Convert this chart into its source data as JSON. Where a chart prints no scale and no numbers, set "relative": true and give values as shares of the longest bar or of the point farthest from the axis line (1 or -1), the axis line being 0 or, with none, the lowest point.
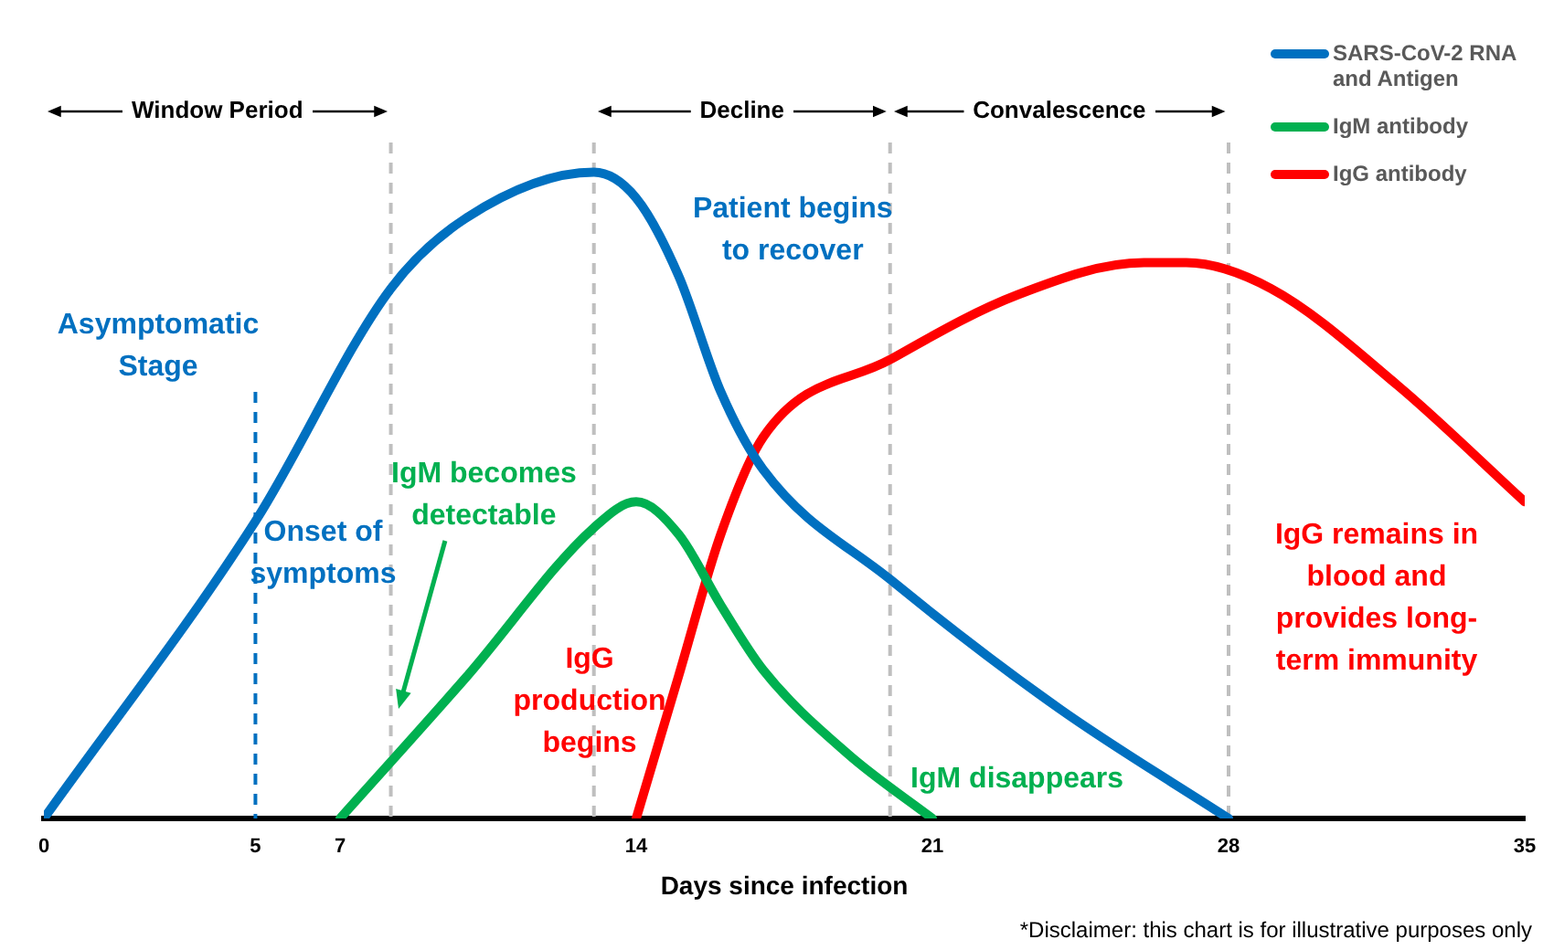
{
  "chart_data": {
    "type": "line",
    "relative": true,
    "xlabel": "Days since infection",
    "xlim": [
      0,
      35
    ],
    "xticks": [
      0,
      5,
      7,
      14,
      21,
      28,
      35
    ],
    "grid": false,
    "legend": "top right",
    "marker": "none",
    "line_style": "solid",
    "series": [
      {
        "name": "SARS-CoV-2 RNA and Antigen",
        "color": "#0070c0",
        "x": [
          0,
          5,
          8.2,
          10,
          13,
          14,
          15,
          16,
          17,
          20,
          24,
          28
        ],
        "values": [
          0,
          0.46,
          0.82,
          0.93,
          1,
          0.96,
          0.84,
          0.66,
          0.54,
          0.37,
          0.17,
          0
        ]
      },
      {
        "name": "IgM antibody",
        "color": "#00b050",
        "x": [
          7,
          10,
          13,
          14,
          15,
          16,
          17,
          19,
          21
        ],
        "values": [
          0,
          0.22,
          0.45,
          0.49,
          0.44,
          0.33,
          0.23,
          0.1,
          0
        ]
      },
      {
        "name": "IgG antibody",
        "color": "#ff0000",
        "x": [
          14,
          15,
          16,
          17,
          20,
          23,
          26,
          27,
          29,
          32,
          35
        ],
        "values": [
          0,
          0.22,
          0.44,
          0.59,
          0.71,
          0.81,
          0.86,
          0.86,
          0.82,
          0.67,
          0.49
        ]
      }
    ],
    "ref_lines": [
      {
        "axis": "x",
        "value": 5,
        "color": "#0070c0",
        "line_style": "dashed"
      },
      {
        "axis": "x",
        "value": 8.2,
        "color": "#bfbfbf",
        "line_style": "dashed"
      },
      {
        "axis": "x",
        "value": 13,
        "color": "#bfbfbf",
        "line_style": "dashed"
      },
      {
        "axis": "x",
        "value": 20,
        "color": "#bfbfbf",
        "line_style": "dashed"
      },
      {
        "axis": "x",
        "value": 28,
        "color": "#bfbfbf",
        "line_style": "dashed"
      }
    ],
    "annotations": [
      "Asymptomatic\nStage",
      "Onset of\nsymptoms",
      "Patient begins\nto recover",
      "IgM becomes\ndetectable",
      "IgG\nproduction\nbegins",
      "IgM disappears",
      "IgG remains in\nblood and\nprovides long-\nterm immunity",
      "Window Period",
      "Decline",
      "Convalescence",
      "*Disclaimer: this chart is for illustrative purposes only"
    ]
  }
}
